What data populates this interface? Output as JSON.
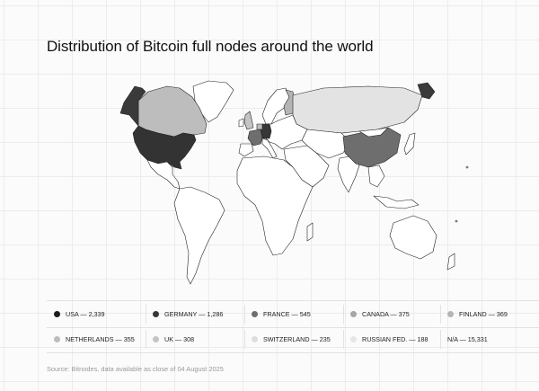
{
  "title": "Distribution of Bitcoin full nodes around the world",
  "source": "Source: Bitnodes, data available as close of 04 August 2025",
  "legend": [
    {
      "label": "USA — 2,339",
      "color": "#1c1c1c"
    },
    {
      "label": "GERMANY — 1,286",
      "color": "#363636"
    },
    {
      "label": "FRANCE — 545",
      "color": "#6e6e6e"
    },
    {
      "label": "CANADA  —  375",
      "color": "#a6a6a6"
    },
    {
      "label": "FINLAND — 369",
      "color": "#b5b5b5"
    },
    {
      "label": "NETHERLANDS — 355",
      "color": "#bdbdbd"
    },
    {
      "label": "UK — 308",
      "color": "#c4c4c4"
    },
    {
      "label": "SWITZERLAND — 235",
      "color": "#dedede"
    },
    {
      "label": "RUSSIAN FED. — 188",
      "color": "#e6e6e6"
    },
    {
      "label": "N/A — 15,331",
      "color": "#ffffff"
    }
  ],
  "map_colors": {
    "usa": "#333333",
    "germany": "#363636",
    "alaska": "#3a3a3a",
    "chukotka": "#3a3a3a",
    "china": "#6e6e6e",
    "france": "#6e6e6e",
    "canada": "#bdbdbd",
    "finland": "#b5b5b5",
    "netherlands": "#bdbdbd",
    "uk": "#c4c4c4",
    "russia": "#e3e3e3",
    "greenland": "#ffffff",
    "other": "#ffffff",
    "stroke": "#222222"
  }
}
